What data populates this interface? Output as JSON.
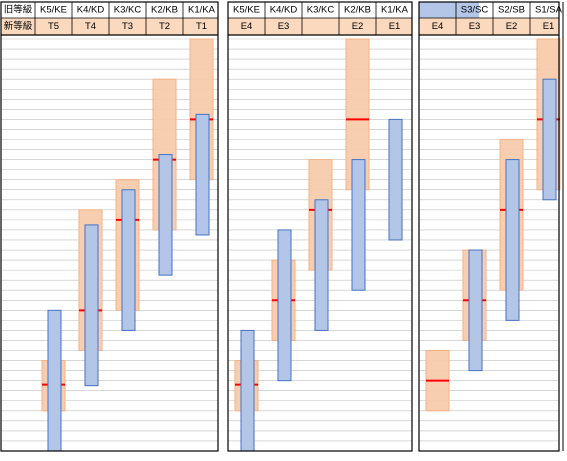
{
  "colors": {
    "old_grade_header": "#ffffff",
    "new_grade_header": "#fbd9be",
    "accent_header": "#b4c6e7",
    "orange_fill": "#f8cbad",
    "orange_stroke": "#f4b183",
    "blue_fill": "#b4c6e7",
    "blue_stroke": "#4472c4",
    "midpoint_line": "#ff0000",
    "grid_line": "#bfbfbf",
    "border": "#000000"
  },
  "header": {
    "old_grade_label": "旧等級",
    "new_grade_label": "新等級"
  },
  "chart_data": {
    "type": "range-band",
    "y_scale": {
      "levels": 41,
      "direction": "top-is-higher"
    },
    "grid": true,
    "panels": [
      {
        "old_grades": [
          "K5/KE",
          "K4/KD",
          "K3/KC",
          "K2/KB",
          "K1/KA"
        ],
        "new_grades": [
          "T5",
          "T4",
          "T3",
          "T2",
          "T1"
        ],
        "series": [
          {
            "color": "orange",
            "bands": [
              {
                "col": 0,
                "min": 4,
                "max": 9,
                "mid": 6.6
              },
              {
                "col": 1,
                "min": 10,
                "max": 24,
                "mid": 14
              },
              {
                "col": 2,
                "min": 14,
                "max": 27,
                "mid": 23
              },
              {
                "col": 3,
                "min": 22,
                "max": 37,
                "mid": 29
              },
              {
                "col": 4,
                "min": 27,
                "max": 41,
                "mid": 33
              }
            ]
          },
          {
            "color": "blue",
            "bands": [
              {
                "col": 0,
                "min": 0,
                "max": 14
              },
              {
                "col": 1,
                "min": 6.5,
                "max": 22.5
              },
              {
                "col": 2,
                "min": 12,
                "max": 26
              },
              {
                "col": 3,
                "min": 17.5,
                "max": 29.5
              },
              {
                "col": 4,
                "min": 21.5,
                "max": 33.5
              }
            ]
          }
        ]
      },
      {
        "old_grades": [
          "K5/KE",
          "K4/KD",
          "K3/KC",
          "K2/KB",
          "K1/KA"
        ],
        "new_grades": [
          "E4",
          "E3",
          "E2",
          "E1"
        ],
        "series": [
          {
            "color": "orange",
            "bands": [
              {
                "col": 0,
                "min": 4,
                "max": 9,
                "mid": 6.6
              },
              {
                "col": 1,
                "min": 11,
                "max": 19,
                "mid": 15
              },
              {
                "col": 2,
                "min": 18,
                "max": 29,
                "mid": 24
              },
              {
                "col": 3,
                "min": 26,
                "max": 41,
                "mid": 33
              }
            ]
          },
          {
            "color": "blue",
            "bands": [
              {
                "col": 0,
                "min": 0,
                "max": 12
              },
              {
                "col": 1,
                "min": 7,
                "max": 22
              },
              {
                "col": 2,
                "min": 12,
                "max": 25
              },
              {
                "col": 3,
                "min": 16,
                "max": 29
              },
              {
                "col": 4,
                "min": 21,
                "max": 33
              }
            ]
          }
        ]
      },
      {
        "old_grades": [
          "",
          "S3/SC",
          "S2/SB",
          "S1/SA"
        ],
        "new_grades": [
          "E4",
          "E3",
          "E2",
          "E1"
        ],
        "series": [
          {
            "color": "orange",
            "bands": [
              {
                "col": 0,
                "min": 4,
                "max": 10,
                "mid": 7
              },
              {
                "col": 1,
                "min": 11,
                "max": 20,
                "mid": 15
              },
              {
                "col": 2,
                "min": 16,
                "max": 31,
                "mid": 24
              },
              {
                "col": 3,
                "min": 26,
                "max": 41,
                "mid": 33
              }
            ]
          },
          {
            "color": "blue",
            "bands": [
              {
                "col": 1,
                "min": 8,
                "max": 20
              },
              {
                "col": 2,
                "min": 13,
                "max": 29
              },
              {
                "col": 3,
                "min": 25,
                "max": 37
              }
            ]
          }
        ]
      }
    ]
  }
}
